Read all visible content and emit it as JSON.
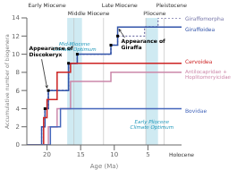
{
  "chart_data": {
    "type": "line",
    "x_label": "Age (Ma)",
    "y_label": "Accumulative number of biogenera",
    "xlim": [
      23,
      0
    ],
    "ylim": [
      0,
      14
    ],
    "xticks": [
      20,
      15,
      10,
      5
    ],
    "yticks": [
      0,
      2,
      4,
      6,
      8,
      10,
      12,
      14
    ],
    "series": [
      {
        "name": "Giraffomorpha",
        "color": "#7777aa",
        "line_style": "dotted",
        "label_y": 14.0,
        "x": [
          23,
          20.8,
          20.8,
          20.3,
          20.3,
          19.8,
          19.8,
          16.8,
          16.8,
          15.5,
          15.5,
          10.5,
          10.5,
          9.5,
          9.5,
          5.5,
          5.5,
          3.5,
          3.5,
          0
        ],
        "values": [
          0,
          0,
          2,
          2,
          4,
          4,
          6,
          6,
          9,
          9,
          10,
          10,
          11,
          11,
          12,
          12,
          13,
          13,
          14,
          14
        ]
      },
      {
        "name": "Giraffoidea",
        "color": "#3355aa",
        "line_style": "solid",
        "label_y": 12.8,
        "x": [
          23,
          20.8,
          20.8,
          20.3,
          20.3,
          19.8,
          19.8,
          16.8,
          16.8,
          15.5,
          15.5,
          10.5,
          10.5,
          9.5,
          9.5,
          3.0,
          0
        ],
        "values": [
          0,
          0,
          2,
          2,
          4,
          4,
          6,
          6,
          9,
          9,
          10,
          10,
          11,
          11,
          13,
          13,
          13
        ]
      },
      {
        "name": "Cervoidea",
        "color": "#cc2222",
        "line_style": "solid",
        "label_y": 9.3,
        "x": [
          23,
          20.5,
          20.5,
          20.0,
          20.0,
          18.5,
          18.5,
          16.5,
          16.5,
          0
        ],
        "values": [
          0,
          0,
          3,
          3,
          5,
          5,
          8,
          8,
          9,
          9
        ]
      },
      {
        "name": "Antilocapridae +\nHoplitomeryicidae",
        "color": "#cc88aa",
        "line_style": "solid",
        "label_y": 7.8,
        "x": [
          23,
          19.8,
          19.8,
          18.5,
          18.5,
          16.5,
          16.5,
          10.5,
          10.5,
          0
        ],
        "values": [
          0,
          0,
          2,
          2,
          4,
          4,
          7,
          7,
          8,
          8
        ]
      },
      {
        "name": "Bovidae",
        "color": "#4466bb",
        "line_style": "solid",
        "label_y": 3.8,
        "x": [
          23,
          19.5,
          19.5,
          18.0,
          18.0,
          0
        ],
        "values": [
          0,
          0,
          2,
          2,
          4,
          4
        ]
      },
      {
        "type": "scatter",
        "color": "#000000",
        "marker": "square",
        "x": [
          20.3,
          19.8,
          16.8,
          15.5,
          10.5,
          9.5
        ],
        "values": [
          4,
          6,
          9,
          10,
          11,
          12
        ]
      }
    ],
    "epochs": [
      {
        "label": "Early Miocene",
        "x": 20.0
      },
      {
        "label": "Middle Miocene",
        "x": 13.8
      },
      {
        "label": "Late Miocene",
        "x": 9.2
      },
      {
        "label": "Pliocene",
        "x": 4.0
      },
      {
        "label": "Pleistocene",
        "x": 1.5
      }
    ],
    "epoch_boundaries": [
      16,
      11.6,
      5.3,
      2.6
    ],
    "shaded_regions": [
      {
        "x0": 17.0,
        "x1": 14.8,
        "color": "#a8d8e8",
        "label": "Mid-Miocene\nClimate Optimum",
        "label_y": 10.8
      },
      {
        "x0": 5.3,
        "x1": 3.5,
        "color": "#a8d8e8",
        "label": "Early Pliocene\nClimate Optimum",
        "label_y": 2.3
      }
    ],
    "annotations": [
      {
        "text": "Appearance of\nDiscokeryx",
        "x": 20.0,
        "y": 6.0
      },
      {
        "text": "Appearance of\nGiraffa",
        "x": 9.5,
        "y": 13.0
      },
      {
        "text": "Holocene"
      }
    ]
  }
}
